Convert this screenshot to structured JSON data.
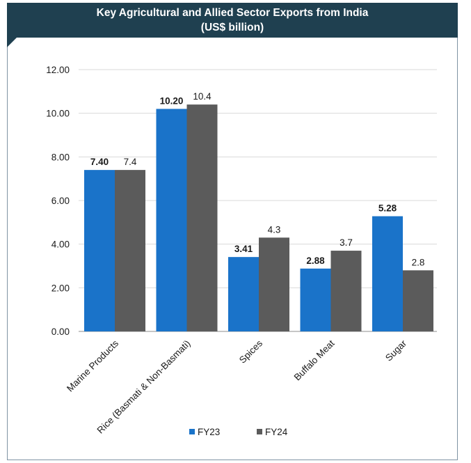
{
  "chart_data": {
    "type": "bar",
    "title": "Key Agricultural and Allied Sector Exports from India",
    "subtitle": "(US$ billion)",
    "xlabel": "",
    "ylabel": "",
    "ylim": [
      0,
      12
    ],
    "yticks": [
      "0.00",
      "2.00",
      "4.00",
      "6.00",
      "8.00",
      "10.00",
      "12.00"
    ],
    "ytick_values": [
      0,
      2,
      4,
      6,
      8,
      10,
      12
    ],
    "categories": [
      "Marine Products",
      "Rice (Basmati & Non-Basmati)",
      "Spices",
      "Buffalo Meat",
      "Sugar"
    ],
    "series": [
      {
        "name": "FY23",
        "color": "#1a73c9",
        "values": [
          7.4,
          10.2,
          3.41,
          2.88,
          5.28
        ],
        "labels": [
          "7.40",
          "10.20",
          "3.41",
          "2.88",
          "5.28"
        ],
        "label_bold": true
      },
      {
        "name": "FY24",
        "color": "#5b5b5b",
        "values": [
          7.4,
          10.4,
          4.3,
          3.7,
          2.8
        ],
        "labels": [
          "7.4",
          "10.4",
          "4.3",
          "3.7",
          "2.8"
        ],
        "label_bold": false
      }
    ],
    "grid": true,
    "legend_position": "bottom"
  }
}
